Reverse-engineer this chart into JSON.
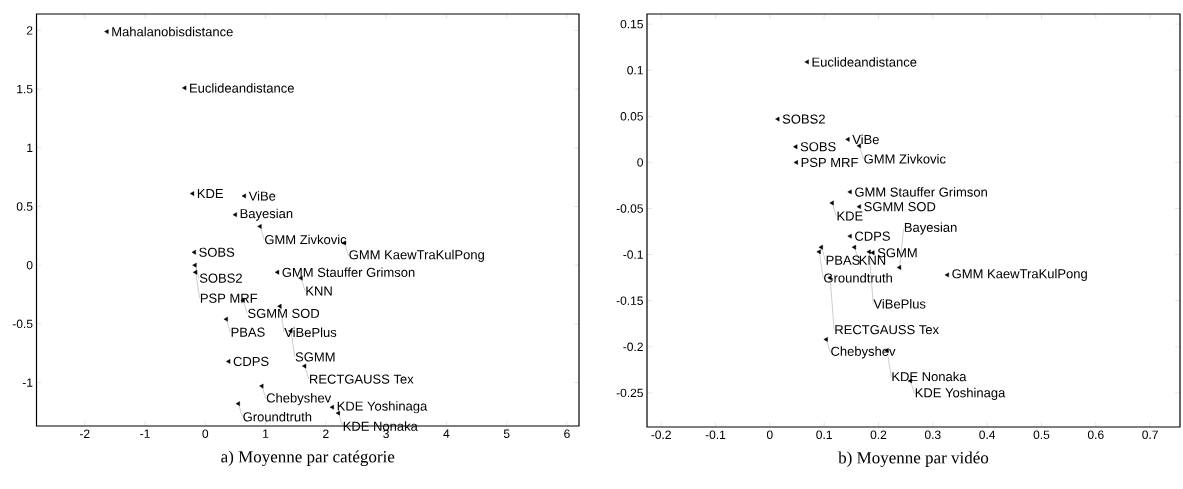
{
  "chart_data": [
    {
      "type": "scatter",
      "title": "a) Moyenne par catégorie",
      "marker": "triangle",
      "series": [
        {
          "color": "#000000",
          "x": [
            -1.63,
            -0.34,
            -0.21,
            0.65,
            0.5,
            0.91,
            2.31,
            -0.18,
            -0.17,
            -0.16,
            1.2,
            1.59,
            0.63,
            1.24,
            0.35,
            1.42,
            0.39,
            1.65,
            0.94,
            0.55,
            2.11,
            2.21
          ],
          "values": [
            1.99,
            1.51,
            0.61,
            0.59,
            0.43,
            0.33,
            0.19,
            0.11,
            0.0,
            -0.06,
            -0.06,
            -0.11,
            -0.3,
            -0.35,
            -0.46,
            -0.56,
            -0.82,
            -0.86,
            -1.03,
            -1.18,
            -1.21,
            -1.26
          ]
        }
      ],
      "annotations": [
        {
          "text": "Mahalanobisdistance",
          "x": -1.63,
          "y": 1.99
        },
        {
          "text": "Euclideandistance",
          "x": -0.34,
          "y": 1.51
        },
        {
          "text": "KDE",
          "x": -0.21,
          "y": 0.61
        },
        {
          "text": "ViBe",
          "x": 0.65,
          "y": 0.59
        },
        {
          "text": "Bayesian",
          "x": 0.5,
          "y": 0.43
        },
        {
          "text": "GMM Zivkovic",
          "x": 0.91,
          "y": 0.33
        },
        {
          "text": "GMM KaewTraKulPong",
          "x": 2.31,
          "y": 0.19
        },
        {
          "text": "SOBS",
          "x": -0.18,
          "y": 0.11
        },
        {
          "text": "SOBS2",
          "x": -0.17,
          "y": 0.0
        },
        {
          "text": "PSP MRF",
          "x": -0.16,
          "y": -0.06
        },
        {
          "text": "GMM Stauffer Grimson",
          "x": 1.2,
          "y": -0.06
        },
        {
          "text": "KNN",
          "x": 1.59,
          "y": -0.11
        },
        {
          "text": "SGMM SOD",
          "x": 0.63,
          "y": -0.3
        },
        {
          "text": "ViBePlus",
          "x": 1.24,
          "y": -0.35
        },
        {
          "text": "PBAS",
          "x": 0.35,
          "y": -0.46
        },
        {
          "text": "SGMM",
          "x": 1.42,
          "y": -0.56
        },
        {
          "text": "CDPS",
          "x": 0.39,
          "y": -0.82
        },
        {
          "text": "RECTGAUSS Tex",
          "x": 1.65,
          "y": -0.86
        },
        {
          "text": "Chebyshev",
          "x": 0.94,
          "y": -1.03
        },
        {
          "text": "Groundtruth",
          "x": 0.55,
          "y": -1.18
        },
        {
          "text": "KDE Yoshinaga",
          "x": 2.11,
          "y": -1.21
        },
        {
          "text": "KDE Nonaka",
          "x": 2.21,
          "y": -1.26
        }
      ],
      "xlim": [
        -2.8,
        6.2
      ],
      "ylim": [
        -1.37,
        2.14
      ],
      "xticks": [
        -2,
        -1,
        0,
        1,
        2,
        3,
        4,
        5,
        6
      ],
      "yticks": [
        -1,
        -0.5,
        0,
        0.5,
        1,
        1.5,
        2
      ]
    },
    {
      "type": "scatter",
      "title": "b) Moyenne par vidéo",
      "marker": "triangle",
      "series": [
        {
          "color": "#000000",
          "x": [
            0.069,
            0.015,
            0.144,
            0.165,
            0.048,
            0.049,
            0.148,
            0.115,
            0.165,
            0.148,
            0.095,
            0.156,
            0.091,
            0.183,
            0.19,
            0.239,
            0.327,
            0.111,
            0.104,
            0.216,
            0.259
          ],
          "values": [
            0.109,
            0.047,
            0.025,
            0.018,
            0.017,
            0.0,
            -0.032,
            -0.044,
            -0.048,
            -0.08,
            -0.092,
            -0.092,
            -0.097,
            -0.097,
            -0.098,
            -0.114,
            -0.122,
            -0.125,
            -0.192,
            -0.204,
            -0.237
          ]
        }
      ],
      "annotations": [
        {
          "text": "Euclideandistance",
          "x": 0.069,
          "y": 0.109
        },
        {
          "text": "SOBS2",
          "x": 0.015,
          "y": 0.047
        },
        {
          "text": "ViBe",
          "x": 0.144,
          "y": 0.025
        },
        {
          "text": "GMM Zivkovic",
          "x": 0.165,
          "y": 0.018
        },
        {
          "text": "SOBS",
          "x": 0.048,
          "y": 0.017
        },
        {
          "text": "PSP MRF",
          "x": 0.049,
          "y": 0.0
        },
        {
          "text": "GMM Stauffer Grimson",
          "x": 0.148,
          "y": -0.032
        },
        {
          "text": "KDE",
          "x": 0.115,
          "y": -0.044
        },
        {
          "text": "SGMM SOD",
          "x": 0.165,
          "y": -0.048
        },
        {
          "text": "CDPS",
          "x": 0.148,
          "y": -0.08
        },
        {
          "text": "PBAS",
          "x": 0.095,
          "y": -0.092
        },
        {
          "text": "KNN",
          "x": 0.156,
          "y": -0.092
        },
        {
          "text": "Groundtruth",
          "x": 0.091,
          "y": -0.097
        },
        {
          "text": "ViBePlus",
          "x": 0.183,
          "y": -0.097
        },
        {
          "text": "SGMM",
          "x": 0.19,
          "y": -0.098
        },
        {
          "text": "Bayesian",
          "x": 0.239,
          "y": -0.114
        },
        {
          "text": "GMM KaewTraKulPong",
          "x": 0.327,
          "y": -0.122
        },
        {
          "text": "RECTGAUSS Tex",
          "x": 0.111,
          "y": -0.125
        },
        {
          "text": "Chebyshev",
          "x": 0.104,
          "y": -0.192
        },
        {
          "text": "KDE Nonaka",
          "x": 0.216,
          "y": -0.204
        },
        {
          "text": "KDE Yoshinaga",
          "x": 0.259,
          "y": -0.237
        }
      ],
      "xlim": [
        -0.226,
        0.755
      ],
      "ylim": [
        -0.287,
        0.161
      ],
      "xticks": [
        -0.2,
        -0.1,
        0,
        0.1,
        0.2,
        0.3,
        0.4,
        0.5,
        0.6,
        0.7
      ],
      "yticks": [
        -0.25,
        -0.2,
        -0.15,
        -0.1,
        -0.05,
        0,
        0.05,
        0.1,
        0.15
      ]
    }
  ]
}
